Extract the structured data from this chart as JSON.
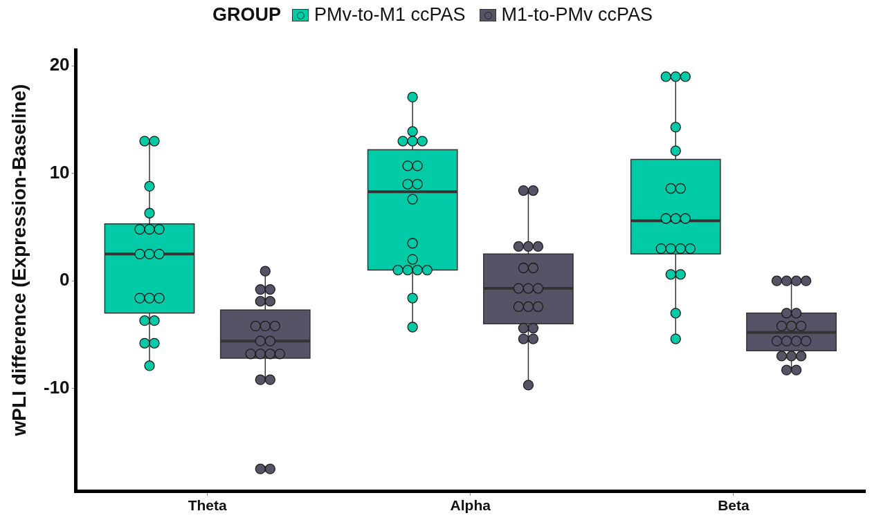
{
  "chart_data": {
    "type": "box",
    "ylabel": "wPLI difference (Expression-Baseline)",
    "legend_title": "GROUP",
    "legend": "top",
    "marker": "circle",
    "categories": [
      "Theta",
      "Alpha",
      "Beta"
    ],
    "ylim": [
      -19.6,
      21.5
    ],
    "yticks": [
      -10,
      0,
      10,
      20
    ],
    "series": [
      {
        "name": "PMv-to-M1 ccPAS",
        "color": "#00cba6",
        "boxes": [
          {
            "low": -7.9,
            "q1": -3.0,
            "median": 2.5,
            "q3": 5.3,
            "high": 13
          },
          {
            "low": -4.3,
            "q1": 1.0,
            "median": 8.3,
            "q3": 12.2,
            "high": 17.1
          },
          {
            "low": -5.4,
            "q1": 2.5,
            "median": 5.6,
            "q3": 11.3,
            "high": 19
          }
        ]
      },
      {
        "name": "M1-to-PMv ccPAS",
        "color": "#575366",
        "boxes": [
          {
            "low": -9.2,
            "q1": -7.2,
            "median": -5.6,
            "q3": -2.7,
            "high": 0.9,
            "outliers": [
              -17.5,
              -17.5
            ]
          },
          {
            "low": -9.7,
            "q1": -4.0,
            "median": -0.7,
            "q3": 2.5,
            "high": 8.4
          },
          {
            "low": -8.3,
            "q1": -6.5,
            "median": -4.8,
            "q3": -3.0,
            "high": 0
          }
        ]
      },
      {
        "type": "scatter",
        "color": "#00cba6",
        "x": [
          "Theta",
          "Theta",
          "Theta",
          "Theta",
          "Theta",
          "Theta",
          "Theta",
          "Theta",
          "Theta",
          "Theta",
          "Theta",
          "Theta",
          "Theta",
          "Theta",
          "Theta",
          "Theta",
          "Theta",
          "Theta",
          "Alpha",
          "Alpha",
          "Alpha",
          "Alpha",
          "Alpha",
          "Alpha",
          "Alpha",
          "Alpha",
          "Alpha",
          "Alpha",
          "Alpha",
          "Alpha",
          "Alpha",
          "Alpha",
          "Alpha",
          "Alpha",
          "Alpha",
          "Alpha",
          "Beta",
          "Beta",
          "Beta",
          "Beta",
          "Beta",
          "Beta",
          "Beta",
          "Beta",
          "Beta",
          "Beta",
          "Beta",
          "Beta",
          "Beta",
          "Beta",
          "Beta",
          "Beta",
          "Beta",
          "Beta"
        ],
        "values": [
          13,
          13,
          8.8,
          6.3,
          4.8,
          4.8,
          4.8,
          2.5,
          2.5,
          2.5,
          -1.6,
          -1.6,
          -1.6,
          -3.7,
          -3.7,
          -5.8,
          -5.8,
          -7.9,
          17.1,
          13.9,
          13,
          13,
          13,
          10.7,
          10.7,
          9,
          9,
          7.6,
          3.5,
          2,
          1,
          1,
          1,
          1,
          -1.6,
          -4.3,
          19,
          19,
          19,
          14.3,
          12.1,
          8.6,
          8.6,
          5.8,
          5.8,
          5.8,
          3,
          3,
          3,
          3,
          0.6,
          0.6,
          -3,
          -5.4
        ]
      },
      {
        "type": "scatter",
        "color": "#575366",
        "x": [
          "Theta",
          "Theta",
          "Theta",
          "Theta",
          "Theta",
          "Theta",
          "Theta",
          "Theta",
          "Theta",
          "Theta",
          "Theta",
          "Theta",
          "Theta",
          "Theta",
          "Theta",
          "Theta",
          "Theta",
          "Theta",
          "Alpha",
          "Alpha",
          "Alpha",
          "Alpha",
          "Alpha",
          "Alpha",
          "Alpha",
          "Alpha",
          "Alpha",
          "Alpha",
          "Alpha",
          "Alpha",
          "Alpha",
          "Alpha",
          "Alpha",
          "Alpha",
          "Alpha",
          "Alpha",
          "Beta",
          "Beta",
          "Beta",
          "Beta",
          "Beta",
          "Beta",
          "Beta",
          "Beta",
          "Beta",
          "Beta",
          "Beta",
          "Beta",
          "Beta",
          "Beta",
          "Beta",
          "Beta",
          "Beta",
          "Beta"
        ],
        "values": [
          0.9,
          -0.8,
          -0.8,
          -1.9,
          -1.9,
          -4.2,
          -4.2,
          -4.2,
          -5.6,
          -5.6,
          -6.8,
          -6.8,
          -6.8,
          -6.8,
          -9.2,
          -9.2,
          -17.5,
          -17.5,
          8.4,
          8.4,
          3.2,
          3.2,
          3.2,
          1.2,
          1.2,
          -0.7,
          -0.7,
          -0.7,
          -2.4,
          -2.4,
          -2.4,
          -4.4,
          -4.4,
          -5.4,
          -5.4,
          -9.7,
          0,
          0,
          0,
          0,
          -3,
          -3,
          -4.2,
          -4.2,
          -4.2,
          -5.6,
          -5.6,
          -5.6,
          -5.6,
          -7,
          -7,
          -7,
          -8.3,
          -8.3
        ]
      }
    ]
  }
}
